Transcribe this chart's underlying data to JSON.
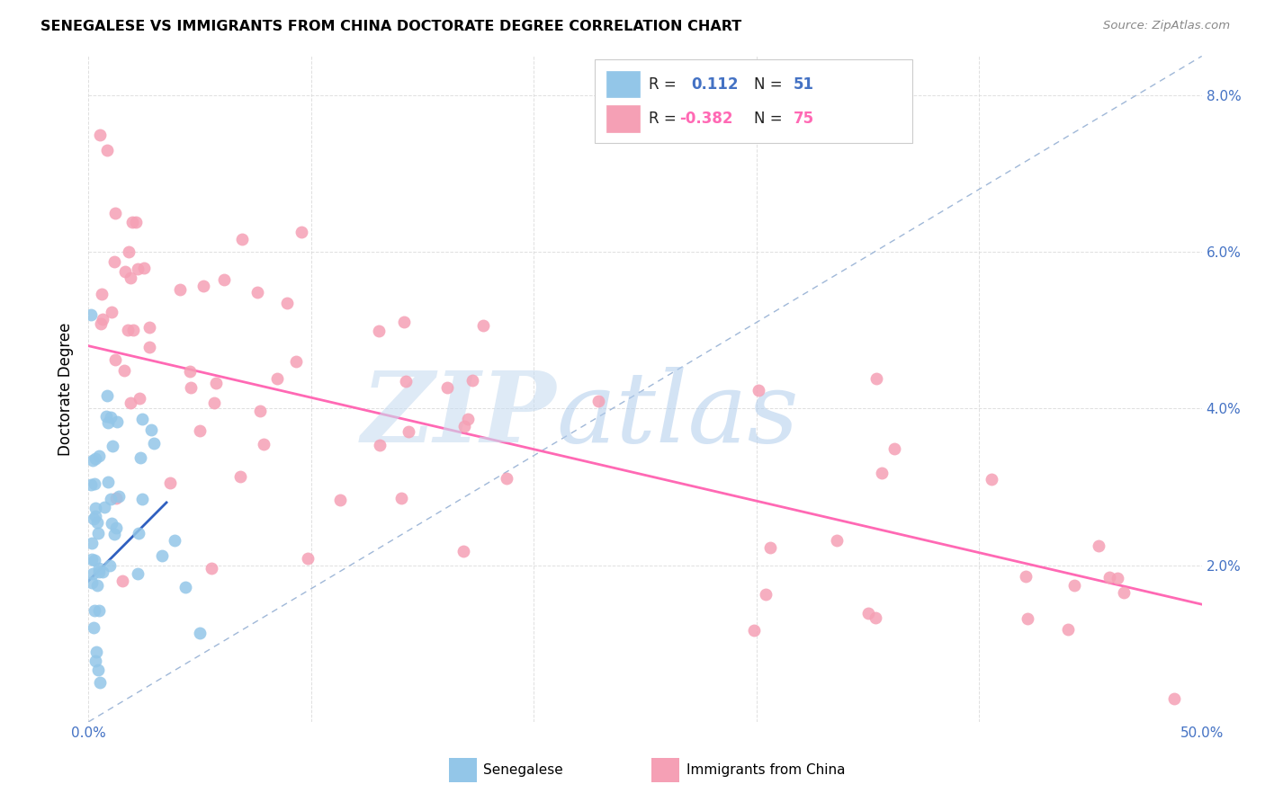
{
  "title": "SENEGALESE VS IMMIGRANTS FROM CHINA DOCTORATE DEGREE CORRELATION CHART",
  "source": "Source: ZipAtlas.com",
  "ylabel": "Doctorate Degree",
  "xlim": [
    0.0,
    0.5
  ],
  "ylim": [
    0.0,
    0.085
  ],
  "xtick_positions": [
    0.0,
    0.1,
    0.2,
    0.3,
    0.4,
    0.5
  ],
  "xtick_labels": [
    "0.0%",
    "",
    "",
    "",
    "",
    "50.0%"
  ],
  "ytick_positions": [
    0.0,
    0.02,
    0.04,
    0.06,
    0.08
  ],
  "ytick_labels": [
    "",
    "2.0%",
    "4.0%",
    "6.0%",
    "8.0%"
  ],
  "blue_scatter_color": "#93C6E8",
  "pink_scatter_color": "#F5A0B5",
  "blue_line_color": "#3060C0",
  "pink_line_color": "#FF69B4",
  "dashed_line_color": "#A0B8D8",
  "legend_R1": "0.112",
  "legend_N1": "51",
  "legend_R2": "-0.382",
  "legend_N2": "75",
  "watermark_zip_color": "#C8DCF0",
  "watermark_atlas_color": "#B0CCEC"
}
